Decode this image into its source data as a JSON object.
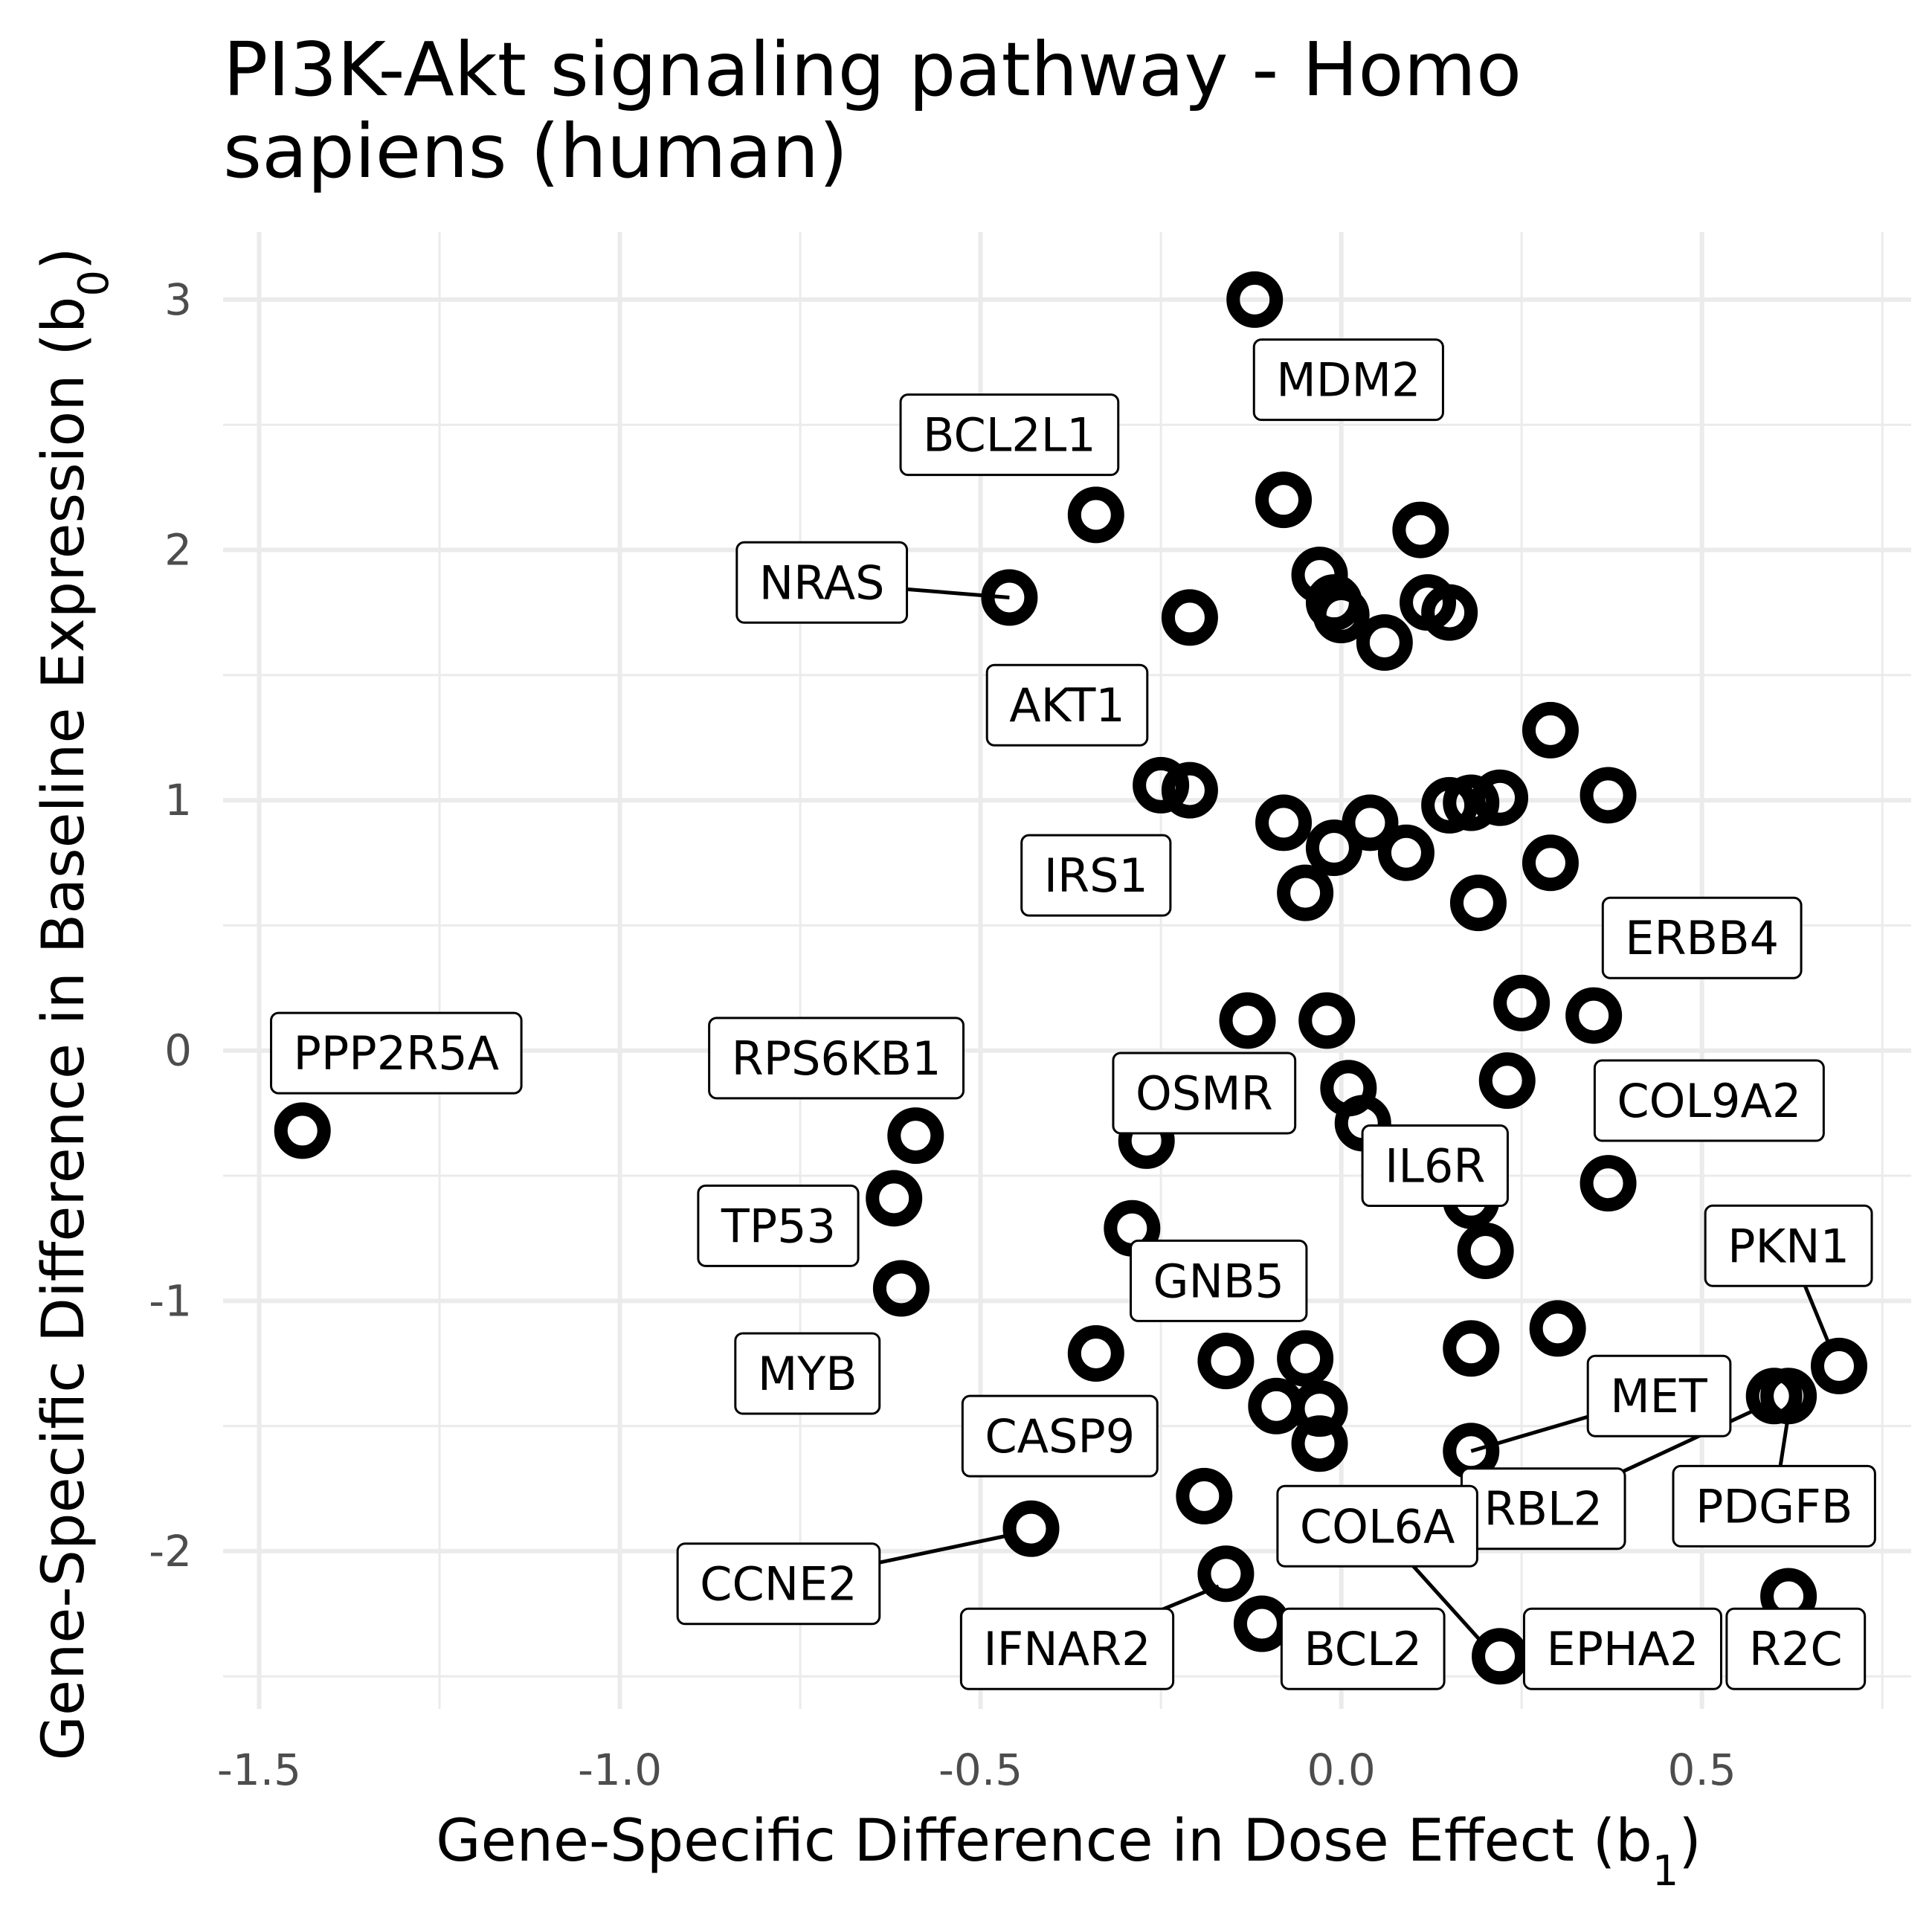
{
  "chart_data": {
    "type": "scatter",
    "title": "PI3K-Akt signaling pathway - Homo sapiens (human)",
    "xlabel": "Gene-Specific Difference in Dose Effect",
    "xlabel_sub": "1",
    "ylabel": "Gene-Specific Difference in Baseline Expression",
    "ylabel_sub": "0",
    "xlim": [
      -1.55,
      0.79
    ],
    "ylim": [
      -2.63,
      3.27
    ],
    "x_ticks": [
      -1.5,
      -1.0,
      -0.5,
      0.0,
      0.5
    ],
    "x_tick_labels": [
      "-1.5",
      "-1.0",
      "-0.5",
      "0.0",
      "0.5"
    ],
    "y_ticks": [
      -2,
      -1,
      0,
      1,
      2,
      3
    ],
    "y_tick_labels": [
      "-2",
      "-1",
      "0",
      "1",
      "2",
      "3"
    ],
    "grid": true,
    "points": [
      {
        "x": -0.12,
        "y": 3.0
      },
      {
        "x": -0.34,
        "y": 2.14
      },
      {
        "x": -0.46,
        "y": 1.81
      },
      {
        "x": -0.21,
        "y": 1.73
      },
      {
        "x": -0.08,
        "y": 2.2
      },
      {
        "x": -0.03,
        "y": 1.9
      },
      {
        "x": -0.01,
        "y": 1.79
      },
      {
        "x": 0.0,
        "y": 1.74
      },
      {
        "x": 0.06,
        "y": 1.63
      },
      {
        "x": 0.11,
        "y": 2.08
      },
      {
        "x": 0.12,
        "y": 1.79
      },
      {
        "x": 0.15,
        "y": 1.75
      },
      {
        "x": 0.29,
        "y": 1.28
      },
      {
        "x": -0.25,
        "y": 1.06
      },
      {
        "x": -0.21,
        "y": 1.04
      },
      {
        "x": -0.08,
        "y": 0.91
      },
      {
        "x": -0.01,
        "y": 0.81
      },
      {
        "x": 0.04,
        "y": 0.91
      },
      {
        "x": 0.09,
        "y": 0.79
      },
      {
        "x": 0.15,
        "y": 0.98
      },
      {
        "x": 0.18,
        "y": 0.99
      },
      {
        "x": 0.22,
        "y": 1.01
      },
      {
        "x": 0.37,
        "y": 1.02
      },
      {
        "x": 0.29,
        "y": 0.75
      },
      {
        "x": -0.05,
        "y": 0.63
      },
      {
        "x": 0.19,
        "y": 0.59
      },
      {
        "x": -0.13,
        "y": 0.12
      },
      {
        "x": -0.02,
        "y": 0.12
      },
      {
        "x": 0.25,
        "y": 0.19
      },
      {
        "x": 0.35,
        "y": 0.14
      },
      {
        "x": 0.01,
        "y": -0.15
      },
      {
        "x": 0.03,
        "y": -0.29
      },
      {
        "x": 0.23,
        "y": -0.12
      },
      {
        "x": 0.37,
        "y": -0.53
      },
      {
        "x": -0.27,
        "y": -0.36
      },
      {
        "x": -1.44,
        "y": -0.32
      },
      {
        "x": -0.59,
        "y": -0.34
      },
      {
        "x": -0.62,
        "y": -0.59
      },
      {
        "x": -0.61,
        "y": -0.95
      },
      {
        "x": -0.29,
        "y": -0.71
      },
      {
        "x": 0.18,
        "y": -0.6
      },
      {
        "x": 0.2,
        "y": -0.8
      },
      {
        "x": -0.34,
        "y": -1.21
      },
      {
        "x": -0.16,
        "y": -1.24
      },
      {
        "x": -0.09,
        "y": -1.42
      },
      {
        "x": -0.05,
        "y": -1.23
      },
      {
        "x": -0.03,
        "y": -1.43
      },
      {
        "x": -0.03,
        "y": -1.57
      },
      {
        "x": 0.18,
        "y": -1.19
      },
      {
        "x": 0.3,
        "y": -1.11
      },
      {
        "x": 0.18,
        "y": -1.6
      },
      {
        "x": 0.6,
        "y": -1.38
      },
      {
        "x": 0.62,
        "y": -1.38
      },
      {
        "x": 0.69,
        "y": -1.26
      },
      {
        "x": -0.43,
        "y": -1.91
      },
      {
        "x": -0.19,
        "y": -1.78
      },
      {
        "x": -0.16,
        "y": -2.09
      },
      {
        "x": -0.11,
        "y": -2.29
      },
      {
        "x": 0.22,
        "y": -2.42
      },
      {
        "x": 0.62,
        "y": -2.18
      }
    ],
    "labels": [
      {
        "text": "MDM2",
        "lx": 0.01,
        "ly": 2.68
      },
      {
        "text": "BCL2L1",
        "lx": -0.46,
        "ly": 2.46
      },
      {
        "text": "NRAS",
        "lx": -0.72,
        "ly": 1.87,
        "px": -0.46,
        "py": 1.81
      },
      {
        "text": "AKT1",
        "lx": -0.38,
        "ly": 1.38
      },
      {
        "text": "IRS1",
        "lx": -0.34,
        "ly": 0.7
      },
      {
        "text": "ERBB4",
        "lx": 0.5,
        "ly": 0.45
      },
      {
        "text": "PPP2R5A",
        "lx": -1.31,
        "ly": -0.01
      },
      {
        "text": "RPS6KB1",
        "lx": -0.7,
        "ly": -0.03
      },
      {
        "text": "OSMR",
        "lx": -0.19,
        "ly": -0.17
      },
      {
        "text": "COL9A2",
        "lx": 0.51,
        "ly": -0.2
      },
      {
        "text": "IL6R",
        "lx": 0.13,
        "ly": -0.46
      },
      {
        "text": "TP53",
        "lx": -0.78,
        "ly": -0.7
      },
      {
        "text": "PKN1",
        "lx": 0.62,
        "ly": -0.78,
        "px": 0.68,
        "py": -1.2
      },
      {
        "text": "GNB5",
        "lx": -0.17,
        "ly": -0.92
      },
      {
        "text": "MYB",
        "lx": -0.74,
        "ly": -1.29
      },
      {
        "text": "MET",
        "lx": 0.44,
        "ly": -1.38,
        "px": 0.18,
        "py": -1.6
      },
      {
        "text": "CASP9",
        "lx": -0.39,
        "ly": -1.54
      },
      {
        "text": "PDGFB",
        "lx": 0.6,
        "ly": -1.82,
        "px": 0.62,
        "py": -1.45
      },
      {
        "text": "RBL2",
        "lx": 0.28,
        "ly": -1.83,
        "px": 0.6,
        "py": -1.4
      },
      {
        "text": "COL6A",
        "lx": 0.05,
        "ly": -1.9,
        "px": 0.2,
        "py": -2.38
      },
      {
        "text": "CCNE2",
        "lx": -0.78,
        "ly": -2.13,
        "px": -0.45,
        "py": -1.93
      },
      {
        "text": "IFNAR2",
        "lx": -0.38,
        "ly": -2.39,
        "px": -0.17,
        "py": -2.14
      },
      {
        "text": "BCL2",
        "lx": 0.03,
        "ly": -2.39
      },
      {
        "text": "EPHA2",
        "lx": 0.39,
        "ly": -2.39
      },
      {
        "text": "R2C",
        "lx": 0.63,
        "ly": -2.39
      }
    ]
  }
}
